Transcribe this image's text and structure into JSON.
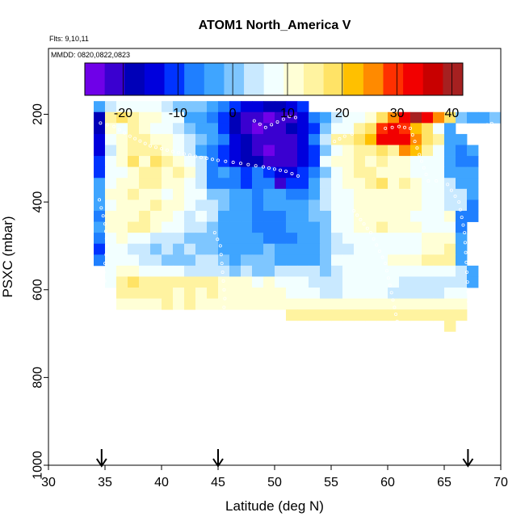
{
  "chart_data": {
    "type": "heatmap",
    "title": "ATOM1 North_America V",
    "subtitle_flights": "Flts: 9,10,11",
    "subtitle_dates": "MMDD: 0820,0822,0823",
    "xlabel": "Latitude (deg N)",
    "ylabel": "PSXC (mbar)",
    "xlim": [
      30,
      70
    ],
    "ylim": [
      1000,
      50
    ],
    "y_reversed": true,
    "x_ticks": [
      "30",
      "35",
      "40",
      "45",
      "50",
      "55",
      "60",
      "65",
      "70"
    ],
    "y_ticks": [
      "200",
      "400",
      "600",
      "800",
      "1000"
    ],
    "colorbar": {
      "range": [
        -27,
        42
      ],
      "tick_labels": [
        "-20",
        "-10",
        "0",
        "10",
        "20",
        "30",
        "40"
      ],
      "tick_values": [
        -20,
        -10,
        0,
        10,
        20,
        30,
        40
      ],
      "colors": [
        "#6f00e8",
        "#3a00d0",
        "#0000b8",
        "#0000dd",
        "#0033ff",
        "#1f7fff",
        "#3fa5ff",
        "#7ec6ff",
        "#c9e9ff",
        "#f2ffff",
        "#ffffd6",
        "#fff3a0",
        "#ffe366",
        "#ffc000",
        "#ff8a00",
        "#ff3000",
        "#f20000",
        "#c80000",
        "#a62020"
      ]
    },
    "arrows_latitude": [
      34.7,
      45,
      67.1
    ],
    "grid": {
      "lat_start": 34,
      "lat_step": 1,
      "p_start": 170,
      "p_step": 25,
      "rows": [
        {
          "start": 34,
          "values": [
            -2,
            3,
            6,
            9,
            8,
            6,
            5,
            1,
            -1,
            0,
            -4,
            -7,
            -12,
            -15,
            -14,
            -17,
            -18,
            -16,
            -9,
            null,
            null,
            null,
            null,
            null,
            null,
            null,
            null,
            null,
            null,
            null,
            null,
            null,
            null
          ]
        },
        {
          "start": 34,
          "values": [
            -17,
            16,
            20,
            14,
            12,
            10,
            9,
            7,
            -2,
            -3,
            -6,
            -10,
            -18,
            -22,
            -23,
            -25,
            -22,
            -20,
            -16,
            -6,
            -3,
            4,
            6,
            9,
            12,
            17,
            25,
            34,
            39,
            33,
            25,
            20,
            2,
            -3,
            -2,
            0
          ]
        },
        {
          "start": 34,
          "values": [
            -18,
            11,
            9,
            13,
            11,
            8,
            7,
            5,
            0,
            -2,
            -5,
            -12,
            -18,
            -21,
            -24,
            -21,
            -23,
            -19,
            -15,
            -10,
            2,
            6,
            9,
            14,
            20,
            31,
            34,
            31,
            22,
            18,
            7,
            -3,
            null,
            null,
            null,
            null
          ]
        },
        {
          "start": 34,
          "values": [
            -13,
            7,
            10,
            15,
            13,
            12,
            10,
            9,
            4,
            0,
            -4,
            -8,
            -15,
            -18,
            -20,
            -22,
            -22,
            -20,
            -15,
            -8,
            4,
            14,
            16,
            20,
            22,
            34,
            33,
            34,
            25,
            20,
            15,
            -3,
            -4,
            null,
            null,
            null
          ]
        },
        {
          "start": 34,
          "values": [
            -15,
            5,
            11,
            15,
            14,
            15,
            12,
            9,
            5,
            -3,
            -7,
            -12,
            -16,
            -19,
            -21,
            -24,
            -22,
            -21,
            -16,
            -12,
            1,
            9,
            11,
            16,
            15,
            18,
            16,
            24,
            21,
            14,
            9,
            -4,
            -6,
            -3,
            null,
            null
          ]
        },
        {
          "start": 34,
          "values": [
            -12,
            9,
            12,
            20,
            12,
            18,
            16,
            12,
            8,
            4,
            -8,
            -11,
            -14,
            -17,
            -18,
            -20,
            -21,
            -22,
            -15,
            -11,
            6,
            10,
            11,
            13,
            12,
            16,
            12,
            10,
            9,
            6,
            8,
            -5,
            -8,
            -7,
            null,
            null
          ]
        },
        {
          "start": 34,
          "values": [
            -10,
            7,
            9,
            10,
            14,
            15,
            11,
            13,
            10,
            5,
            -6,
            -5,
            -6,
            -11,
            -7,
            -12,
            -14,
            -16,
            -12,
            -8,
            1,
            9,
            10,
            13,
            14,
            10,
            10,
            10,
            8,
            6,
            7,
            -2,
            -4,
            -3,
            null,
            null
          ]
        },
        {
          "start": 34,
          "values": [
            -4,
            8,
            11,
            12,
            13,
            16,
            11,
            12,
            9,
            4,
            -6,
            -8,
            -6,
            -9,
            -7,
            -7,
            -23,
            -12,
            -9,
            -3,
            5,
            8,
            12,
            12,
            15,
            17,
            12,
            13,
            11,
            8,
            7,
            3,
            -5,
            -4,
            null,
            null
          ]
        },
        {
          "start": 34,
          "values": [
            -3,
            10,
            12,
            14,
            11,
            10,
            9,
            12,
            9,
            6,
            1,
            0,
            -3,
            -4,
            -6,
            -5,
            -4,
            -6,
            -6,
            -2,
            4,
            8,
            9,
            10,
            10,
            12,
            11,
            10,
            11,
            8,
            6,
            4,
            3,
            -4,
            null,
            null
          ]
        },
        {
          "start": 34,
          "values": [
            -2,
            9,
            10,
            11,
            12,
            13,
            10,
            11,
            7,
            5,
            3,
            0,
            -2,
            -5,
            -6,
            -5,
            -4,
            -5,
            -3,
            0,
            3,
            7,
            9,
            11,
            11,
            10,
            11,
            12,
            10,
            8,
            7,
            5,
            3,
            -6,
            null,
            null
          ]
        },
        {
          "start": 34,
          "values": [
            -7,
            10,
            11,
            12,
            13,
            12,
            11,
            9,
            5,
            6,
            3,
            -2,
            -4,
            -5,
            -6,
            -6,
            -7,
            -5,
            -3,
            -1,
            2,
            7,
            8,
            12,
            11,
            12,
            11,
            10,
            9,
            8,
            9,
            10,
            -6,
            -7,
            null,
            null
          ]
        },
        {
          "start": 34,
          "values": [
            -5,
            12,
            12,
            13,
            13,
            11,
            9,
            7,
            5,
            3,
            -1,
            -3,
            -4,
            -5,
            -6,
            -7,
            -6,
            -5,
            -4,
            -2,
            2,
            6,
            8,
            10,
            11,
            13,
            12,
            11,
            10,
            9,
            8,
            7,
            -6,
            null,
            null,
            null
          ]
        },
        {
          "start": 34,
          "values": [
            -8,
            8,
            11,
            9,
            7,
            5,
            4,
            4,
            2,
            0,
            -1,
            -3,
            -5,
            -4,
            -5,
            -6,
            -6,
            -7,
            -5,
            -4,
            0,
            3,
            6,
            9,
            8,
            9,
            9,
            8,
            7,
            10,
            11,
            12,
            -4,
            null,
            null,
            null
          ]
        },
        {
          "start": 34,
          "values": [
            -9,
            6,
            8,
            5,
            3,
            2,
            3,
            2,
            3,
            2,
            0,
            -3,
            -5,
            -4,
            -2,
            -1,
            -4,
            -5,
            -3,
            -4,
            -1,
            3,
            5,
            7,
            6,
            7,
            8,
            8,
            8,
            10,
            12,
            16,
            -4,
            null,
            null,
            null
          ]
        },
        {
          "start": 34,
          "values": [
            -8,
            7,
            6,
            6,
            4,
            3,
            2,
            0,
            2,
            3,
            3,
            -1,
            -2,
            0,
            1,
            0,
            -2,
            -3,
            -3,
            -2,
            1,
            6,
            8,
            6,
            7,
            8,
            10,
            12,
            12,
            14,
            16,
            16,
            -2,
            null,
            null,
            null
          ]
        },
        {
          "start": 34,
          "values": [
            null,
            8,
            10,
            10,
            9,
            7,
            6,
            6,
            5,
            5,
            4,
            3,
            2,
            3,
            2,
            2,
            3,
            4,
            4,
            3,
            2,
            4,
            6,
            7,
            7,
            7,
            8,
            7,
            8,
            8,
            8,
            8,
            5,
            -4,
            null,
            null
          ]
        },
        {
          "start": 34,
          "values": [
            null,
            8,
            16,
            17,
            16,
            15,
            14,
            13,
            14,
            13,
            13,
            12,
            10,
            10,
            9,
            10,
            8,
            8,
            6,
            5,
            4,
            4,
            6,
            6,
            8,
            7,
            7,
            5,
            5,
            4,
            3,
            5,
            4,
            -4,
            null,
            null
          ]
        },
        {
          "start": 34,
          "values": [
            null,
            null,
            14,
            15,
            14,
            14,
            13,
            12,
            13,
            12,
            13,
            12,
            11,
            10,
            12,
            11,
            10,
            9,
            7,
            6,
            5,
            5,
            7,
            7,
            6,
            6,
            5,
            4,
            4,
            5,
            5,
            6,
            7,
            null,
            null,
            null
          ]
        },
        {
          "start": 34,
          "values": [
            null,
            null,
            12,
            12,
            12,
            12,
            13,
            12,
            13,
            12,
            12,
            11,
            12,
            12,
            12,
            12,
            11,
            11,
            11,
            11,
            11,
            11,
            11,
            11,
            11,
            11,
            11,
            11,
            11,
            11,
            11,
            11,
            11,
            null,
            null,
            null
          ]
        },
        {
          "start": 34,
          "values": [
            null,
            null,
            null,
            null,
            null,
            null,
            null,
            null,
            null,
            null,
            null,
            null,
            null,
            null,
            null,
            null,
            null,
            14,
            14,
            14,
            14,
            14,
            14,
            14,
            14,
            14,
            14,
            14,
            14,
            14,
            14,
            14,
            14,
            null,
            null,
            null
          ]
        },
        {
          "start": 34,
          "values": [
            null,
            null,
            null,
            null,
            null,
            null,
            null,
            null,
            null,
            null,
            null,
            null,
            null,
            null,
            null,
            null,
            null,
            null,
            null,
            null,
            null,
            null,
            null,
            null,
            null,
            null,
            null,
            null,
            null,
            null,
            null,
            14,
            null,
            null,
            null,
            null
          ]
        }
      ]
    }
  }
}
